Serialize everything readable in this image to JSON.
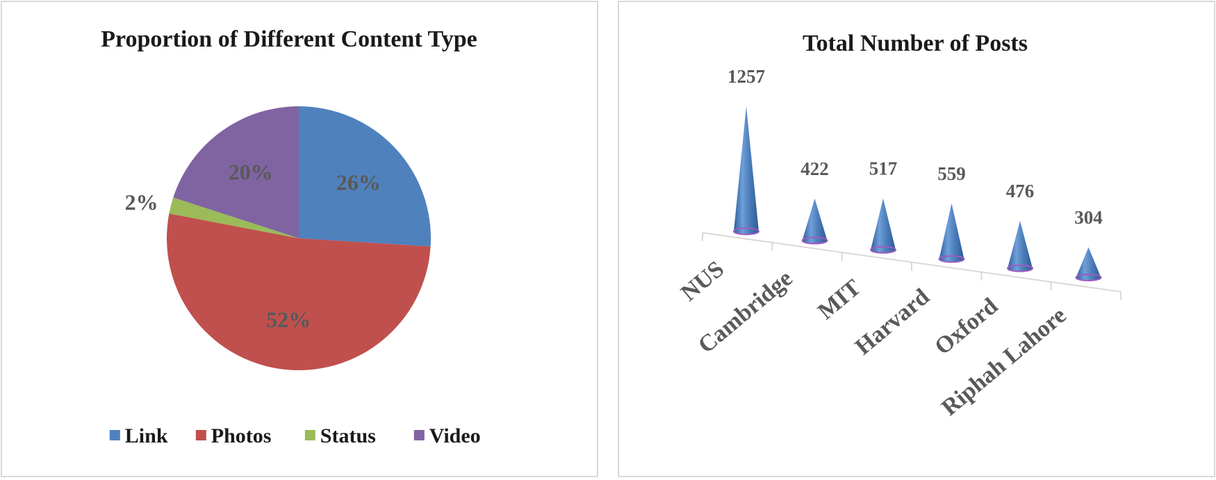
{
  "chart_data": [
    {
      "type": "pie",
      "title": "Proportion of Different Content Type",
      "slices": [
        {
          "label": "Link",
          "value": 26,
          "display": "26%",
          "color": "#4f81bd"
        },
        {
          "label": "Photos",
          "value": 52,
          "display": "52%",
          "color": "#c0504d"
        },
        {
          "label": "Status",
          "value": 2,
          "display": "2%",
          "color": "#9bbb59"
        },
        {
          "label": "Video",
          "value": 20,
          "display": "20%",
          "color": "#8064a2"
        }
      ],
      "legend_position": "bottom"
    },
    {
      "type": "bar",
      "style": "3d-cone",
      "title": "Total Number of Posts",
      "categories": [
        "NUS",
        "Cambridge",
        "MIT",
        "Harvard",
        "Oxford",
        "Riphah Lahore"
      ],
      "values": [
        1257,
        422,
        517,
        559,
        476,
        304
      ],
      "color": "#4f81bd",
      "grid": false
    }
  ]
}
